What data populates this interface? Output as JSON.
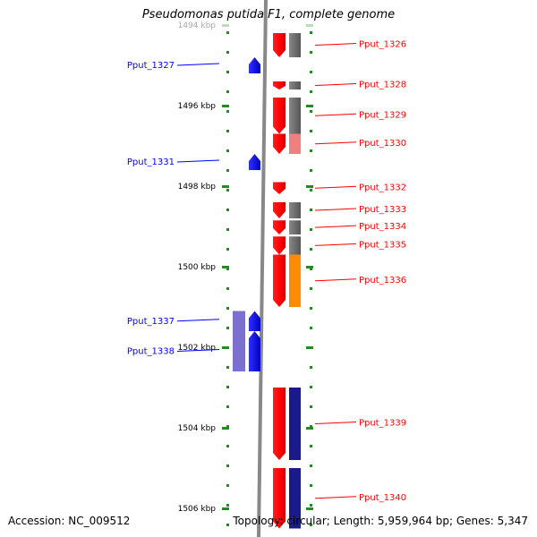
{
  "title": "Pseudomonas putida F1, complete genome",
  "accession": "Accession: NC_009512",
  "footer": "Topology: circular; Length: 5,959,964 bp; Genes: 5,347",
  "scale": {
    "unit": "kbp",
    "ticks": [
      {
        "label": "1494 kbp",
        "value": 1494,
        "faded": true
      },
      {
        "label": "1496 kbp",
        "value": 1496
      },
      {
        "label": "1498 kbp",
        "value": 1498
      },
      {
        "label": "1500 kbp",
        "value": 1500
      },
      {
        "label": "1502 kbp",
        "value": 1502
      },
      {
        "label": "1504 kbp",
        "value": 1504
      },
      {
        "label": "1506 kbp",
        "value": 1506
      }
    ]
  },
  "colors": {
    "plus_strand": "#ff0000",
    "minus_strand": "#0000ff",
    "similarity_gray": "#777777",
    "similarity_pink": "#f08080",
    "similarity_orange": "#ff8c00",
    "similarity_navy": "#1a1a8c",
    "similarity_lavender": "#7b6fd0",
    "backbone": "#888888",
    "tick_green": "#228b22"
  },
  "genes": [
    {
      "label": "Pput_1326",
      "strand": "+",
      "start": 1494.2,
      "end": 1494.8,
      "similarity": "gray"
    },
    {
      "label": "Pput_1327",
      "strand": "-",
      "start": 1494.8,
      "end": 1495.2,
      "similarity": null
    },
    {
      "label": "Pput_1328",
      "strand": "+",
      "start": 1495.4,
      "end": 1495.6,
      "similarity": "gray"
    },
    {
      "label": "Pput_1329",
      "strand": "+",
      "start": 1495.8,
      "end": 1496.7,
      "similarity": "gray"
    },
    {
      "label": "Pput_1330",
      "strand": "+",
      "start": 1496.7,
      "end": 1497.2,
      "similarity": "pink"
    },
    {
      "label": "Pput_1331",
      "strand": "-",
      "start": 1497.2,
      "end": 1497.6,
      "similarity": null
    },
    {
      "label": "Pput_1332",
      "strand": "+",
      "start": 1497.9,
      "end": 1498.2,
      "similarity": null
    },
    {
      "label": "Pput_1333",
      "strand": "+",
      "start": 1498.4,
      "end": 1498.8,
      "similarity": "gray"
    },
    {
      "label": "Pput_1334",
      "strand": "+",
      "start": 1498.85,
      "end": 1499.2,
      "similarity": "gray"
    },
    {
      "label": "Pput_1335",
      "strand": "+",
      "start": 1499.25,
      "end": 1499.7,
      "similarity": "gray"
    },
    {
      "label": "Pput_1336",
      "strand": "+",
      "start": 1499.7,
      "end": 1501.0,
      "similarity": "orange"
    },
    {
      "label": "Pput_1337",
      "strand": "-",
      "start": 1501.1,
      "end": 1501.6,
      "similarity": "lavender"
    },
    {
      "label": "Pput_1338",
      "strand": "-",
      "start": 1501.6,
      "end": 1502.6,
      "similarity": "lavender"
    },
    {
      "label": "Pput_1339",
      "strand": "+",
      "start": 1503.0,
      "end": 1504.8,
      "similarity": "navy"
    },
    {
      "label": "Pput_1340",
      "strand": "+",
      "start": 1505.0,
      "end": 1506.5,
      "similarity": "navy"
    }
  ]
}
